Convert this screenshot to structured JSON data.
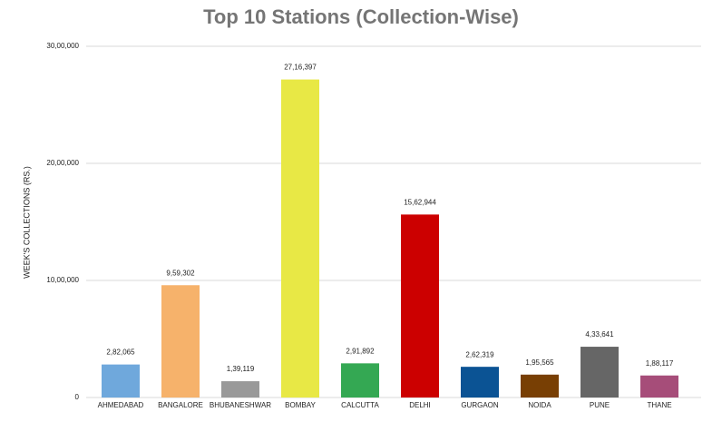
{
  "chart_data": {
    "type": "bar",
    "title": "Top 10 Stations (Collection-Wise)",
    "ylabel": "WEEK'S COLLECTIONS (RS.)",
    "categories": [
      "AHMEDABAD",
      "BANGALORE",
      "BHUBANESHWAR",
      "BOMBAY",
      "CALCUTTA",
      "DELHI",
      "GURGAON",
      "NOIDA",
      "PUNE",
      "THANE"
    ],
    "values": [
      282065,
      959302,
      139119,
      2716397,
      291892,
      1562944,
      262319,
      195565,
      433641,
      188117
    ],
    "value_labels": [
      "2,82,065",
      "9,59,302",
      "1,39,119",
      "27,16,397",
      "2,91,892",
      "15,62,944",
      "2,62,319",
      "1,95,565",
      "4,33,641",
      "1,88,117"
    ],
    "colors": [
      "#6fa8dc",
      "#f6b26b",
      "#999999",
      "#e8e845",
      "#34a853",
      "#cc0000",
      "#0b5394",
      "#783f04",
      "#666666",
      "#a64d79"
    ],
    "ylim": [
      0,
      3000000
    ],
    "yticks": [
      0,
      {
        "value": 1000000,
        "label": "10,00,000"
      },
      {
        "value": 2000000,
        "label": "20,00,000"
      },
      {
        "value": 3000000,
        "label": "30,00,000"
      }
    ],
    "grid": true
  }
}
